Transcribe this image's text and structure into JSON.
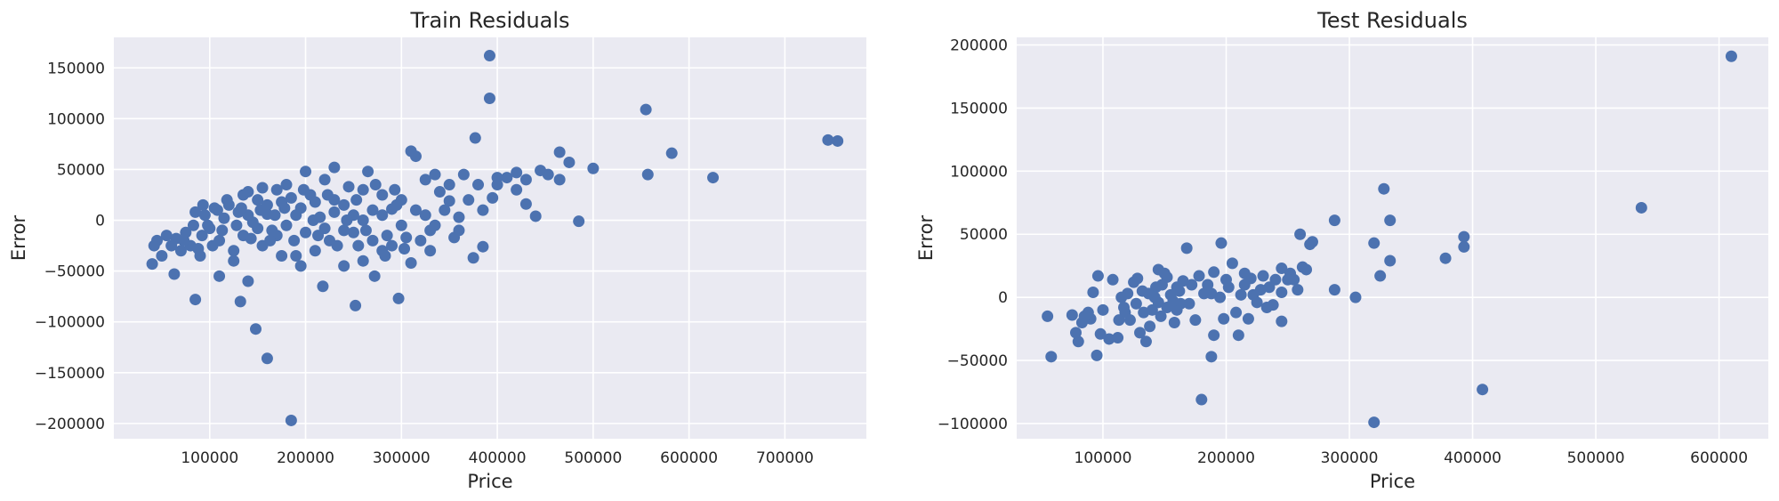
{
  "chart_data": [
    {
      "type": "scatter",
      "title": "Train Residuals",
      "xlabel": "Price",
      "ylabel": "Error",
      "xlim": [
        0,
        785000
      ],
      "ylim": [
        -215000,
        180000
      ],
      "xticks": [
        100000,
        200000,
        300000,
        400000,
        500000,
        600000,
        700000
      ],
      "yticks": [
        -200000,
        -150000,
        -100000,
        -50000,
        0,
        50000,
        100000,
        150000
      ],
      "grid": true,
      "color": "#4c72b0",
      "points": [
        [
          392000,
          162000
        ],
        [
          392000,
          120000
        ],
        [
          555000,
          109000
        ],
        [
          745000,
          79000
        ],
        [
          755000,
          78000
        ],
        [
          582000,
          66000
        ],
        [
          377000,
          81000
        ],
        [
          310000,
          68000
        ],
        [
          315000,
          63000
        ],
        [
          465000,
          67000
        ],
        [
          475000,
          57000
        ],
        [
          500000,
          51000
        ],
        [
          557000,
          45000
        ],
        [
          625000,
          42000
        ],
        [
          465000,
          40000
        ],
        [
          445000,
          49000
        ],
        [
          420000,
          47000
        ],
        [
          400000,
          42000
        ],
        [
          395000,
          22000
        ],
        [
          430000,
          16000
        ],
        [
          440000,
          4000
        ],
        [
          485000,
          -1000
        ],
        [
          375000,
          -37000
        ],
        [
          385000,
          -26000
        ],
        [
          350000,
          19000
        ],
        [
          360000,
          3000
        ],
        [
          355000,
          -17000
        ],
        [
          340000,
          28000
        ],
        [
          365000,
          45000
        ],
        [
          380000,
          35000
        ],
        [
          330000,
          -10000
        ],
        [
          325000,
          40000
        ],
        [
          320000,
          -20000
        ],
        [
          305000,
          -17000
        ],
        [
          300000,
          -5000
        ],
        [
          290000,
          11000
        ],
        [
          285000,
          -15000
        ],
        [
          270000,
          10000
        ],
        [
          260000,
          30000
        ],
        [
          255000,
          -25000
        ],
        [
          250000,
          5000
        ],
        [
          245000,
          33000
        ],
        [
          240000,
          -10000
        ],
        [
          230000,
          20000
        ],
        [
          225000,
          -20000
        ],
        [
          220000,
          40000
        ],
        [
          215000,
          3000
        ],
        [
          210000,
          -30000
        ],
        [
          200000,
          48000
        ],
        [
          195000,
          12000
        ],
        [
          190000,
          -35000
        ],
        [
          185000,
          22000
        ],
        [
          180000,
          -5000
        ],
        [
          175000,
          18000
        ],
        [
          170000,
          30000
        ],
        [
          165000,
          -10000
        ],
        [
          160000,
          6000
        ],
        [
          155000,
          -25000
        ],
        [
          150000,
          20000
        ],
        [
          145000,
          -2000
        ],
        [
          140000,
          28000
        ],
        [
          135000,
          -15000
        ],
        [
          130000,
          8000
        ],
        [
          125000,
          -30000
        ],
        [
          120000,
          15000
        ],
        [
          115000,
          2000
        ],
        [
          110000,
          -20000
        ],
        [
          105000,
          12000
        ],
        [
          100000,
          -8000
        ],
        [
          95000,
          5000
        ],
        [
          90000,
          -35000
        ],
        [
          85000,
          8000
        ],
        [
          80000,
          -25000
        ],
        [
          75000,
          -12000
        ],
        [
          70000,
          -30000
        ],
        [
          65000,
          -18000
        ],
        [
          60000,
          -25000
        ],
        [
          55000,
          -15000
        ],
        [
          50000,
          -35000
        ],
        [
          45000,
          -20000
        ],
        [
          40000,
          -43000
        ],
        [
          42000,
          -25000
        ],
        [
          63000,
          -53000
        ],
        [
          85000,
          -78000
        ],
        [
          132000,
          -80000
        ],
        [
          148000,
          -107000
        ],
        [
          160000,
          -136000
        ],
        [
          185000,
          -197000
        ],
        [
          218000,
          -65000
        ],
        [
          252000,
          -84000
        ],
        [
          297000,
          -77000
        ],
        [
          272000,
          -55000
        ],
        [
          260000,
          -40000
        ],
        [
          240000,
          -45000
        ],
        [
          280000,
          -30000
        ],
        [
          310000,
          -42000
        ],
        [
          330000,
          -30000
        ],
        [
          335000,
          45000
        ],
        [
          350000,
          35000
        ],
        [
          230000,
          52000
        ],
        [
          265000,
          48000
        ],
        [
          280000,
          25000
        ],
        [
          295000,
          15000
        ],
        [
          110000,
          -55000
        ],
        [
          125000,
          -40000
        ],
        [
          140000,
          -60000
        ],
        [
          175000,
          -35000
        ],
        [
          195000,
          -45000
        ],
        [
          205000,
          25000
        ],
        [
          180000,
          35000
        ],
        [
          155000,
          32000
        ],
        [
          135000,
          25000
        ],
        [
          118000,
          20000
        ],
        [
          108000,
          10000
        ],
        [
          98000,
          -5000
        ],
        [
          92000,
          -15000
        ],
        [
          88000,
          -28000
        ],
        [
          140000,
          5000
        ],
        [
          150000,
          -8000
        ],
        [
          160000,
          15000
        ],
        [
          170000,
          -15000
        ],
        [
          190000,
          5000
        ],
        [
          200000,
          -12000
        ],
        [
          210000,
          18000
        ],
        [
          220000,
          -8000
        ],
        [
          230000,
          8000
        ],
        [
          240000,
          15000
        ],
        [
          250000,
          -12000
        ],
        [
          260000,
          0
        ],
        [
          270000,
          -20000
        ],
        [
          280000,
          5000
        ],
        [
          290000,
          -25000
        ],
        [
          300000,
          20000
        ],
        [
          315000,
          10000
        ],
        [
          325000,
          5000
        ],
        [
          335000,
          -5000
        ],
        [
          345000,
          10000
        ],
        [
          360000,
          -10000
        ],
        [
          370000,
          20000
        ],
        [
          385000,
          10000
        ],
        [
          400000,
          35000
        ],
        [
          410000,
          42000
        ],
        [
          420000,
          30000
        ],
        [
          430000,
          40000
        ],
        [
          453000,
          45000
        ],
        [
          128000,
          -5000
        ],
        [
          133000,
          12000
        ],
        [
          143000,
          -18000
        ],
        [
          153000,
          10000
        ],
        [
          163000,
          -20000
        ],
        [
          168000,
          5000
        ],
        [
          178000,
          12000
        ],
        [
          188000,
          -20000
        ],
        [
          198000,
          30000
        ],
        [
          208000,
          0
        ],
        [
          213000,
          -15000
        ],
        [
          223000,
          25000
        ],
        [
          233000,
          -25000
        ],
        [
          243000,
          0
        ],
        [
          253000,
          20000
        ],
        [
          263000,
          -10000
        ],
        [
          273000,
          35000
        ],
        [
          283000,
          -35000
        ],
        [
          293000,
          30000
        ],
        [
          303000,
          -28000
        ],
        [
          113000,
          -10000
        ],
        [
          103000,
          -25000
        ],
        [
          93000,
          15000
        ],
        [
          83000,
          -5000
        ],
        [
          73000,
          -20000
        ]
      ]
    },
    {
      "type": "scatter",
      "title": "Test Residuals",
      "xlabel": "Price",
      "ylabel": "Error",
      "xlim": [
        30000,
        640000
      ],
      "ylim": [
        -112000,
        206000
      ],
      "xticks": [
        100000,
        200000,
        300000,
        400000,
        500000,
        600000
      ],
      "yticks": [
        -100000,
        -50000,
        0,
        50000,
        100000,
        150000,
        200000
      ],
      "grid": true,
      "color": "#4c72b0",
      "points": [
        [
          610000,
          191000
        ],
        [
          537000,
          71000
        ],
        [
          408000,
          -73000
        ],
        [
          320000,
          -99000
        ],
        [
          393000,
          48000
        ],
        [
          393000,
          40000
        ],
        [
          378000,
          31000
        ],
        [
          328000,
          86000
        ],
        [
          333000,
          61000
        ],
        [
          320000,
          43000
        ],
        [
          333000,
          29000
        ],
        [
          325000,
          17000
        ],
        [
          305000,
          0
        ],
        [
          288000,
          61000
        ],
        [
          288000,
          6000
        ],
        [
          268000,
          42000
        ],
        [
          270000,
          44000
        ],
        [
          260000,
          50000
        ],
        [
          262000,
          24000
        ],
        [
          265000,
          22000
        ],
        [
          258000,
          6000
        ],
        [
          252000,
          19000
        ],
        [
          245000,
          23000
        ],
        [
          240000,
          14000
        ],
        [
          235000,
          8000
        ],
        [
          230000,
          17000
        ],
        [
          245000,
          4000
        ],
        [
          245000,
          -19000
        ],
        [
          238000,
          -6000
        ],
        [
          225000,
          -4000
        ],
        [
          220000,
          15000
        ],
        [
          215000,
          19000
        ],
        [
          212000,
          2000
        ],
        [
          210000,
          -30000
        ],
        [
          205000,
          27000
        ],
        [
          200000,
          14000
        ],
        [
          198000,
          -17000
        ],
        [
          196000,
          43000
        ],
        [
          190000,
          20000
        ],
        [
          188000,
          3000
        ],
        [
          190000,
          -30000
        ],
        [
          188000,
          -47000
        ],
        [
          180000,
          -81000
        ],
        [
          178000,
          17000
        ],
        [
          172000,
          10000
        ],
        [
          168000,
          39000
        ],
        [
          165000,
          13000
        ],
        [
          163000,
          -5000
        ],
        [
          160000,
          -10000
        ],
        [
          158000,
          -20000
        ],
        [
          155000,
          2000
        ],
        [
          150000,
          19000
        ],
        [
          148000,
          10000
        ],
        [
          145000,
          -4000
        ],
        [
          143000,
          8000
        ],
        [
          140000,
          -10000
        ],
        [
          138000,
          -23000
        ],
        [
          135000,
          -35000
        ],
        [
          132000,
          5000
        ],
        [
          130000,
          -28000
        ],
        [
          128000,
          15000
        ],
        [
          125000,
          12000
        ],
        [
          122000,
          -18000
        ],
        [
          120000,
          3000
        ],
        [
          118000,
          -12000
        ],
        [
          115000,
          0
        ],
        [
          112000,
          -32000
        ],
        [
          108000,
          14000
        ],
        [
          105000,
          -33000
        ],
        [
          100000,
          -10000
        ],
        [
          98000,
          -29000
        ],
        [
          96000,
          17000
        ],
        [
          95000,
          -46000
        ],
        [
          92000,
          4000
        ],
        [
          90000,
          -17000
        ],
        [
          88000,
          -12000
        ],
        [
          85000,
          -15000
        ],
        [
          83000,
          -20000
        ],
        [
          80000,
          -35000
        ],
        [
          78000,
          -28000
        ],
        [
          75000,
          -14000
        ],
        [
          58000,
          -47000
        ],
        [
          55000,
          -15000
        ],
        [
          152000,
          16000
        ],
        [
          157000,
          -3000
        ],
        [
          162000,
          5000
        ],
        [
          175000,
          -18000
        ],
        [
          182000,
          3000
        ],
        [
          202000,
          8000
        ],
        [
          208000,
          -12000
        ],
        [
          218000,
          -17000
        ],
        [
          228000,
          6000
        ],
        [
          233000,
          -8000
        ],
        [
          250000,
          14000
        ],
        [
          255000,
          14000
        ],
        [
          142000,
          0
        ],
        [
          137000,
          3000
        ],
        [
          147000,
          -15000
        ],
        [
          133000,
          -12000
        ],
        [
          127000,
          -5000
        ],
        [
          117000,
          -8000
        ],
        [
          113000,
          -18000
        ],
        [
          170000,
          -5000
        ],
        [
          185000,
          10000
        ],
        [
          195000,
          0
        ],
        [
          215000,
          10000
        ],
        [
          222000,
          2000
        ],
        [
          145000,
          22000
        ],
        [
          152000,
          -8000
        ],
        [
          160000,
          8000
        ]
      ]
    }
  ]
}
